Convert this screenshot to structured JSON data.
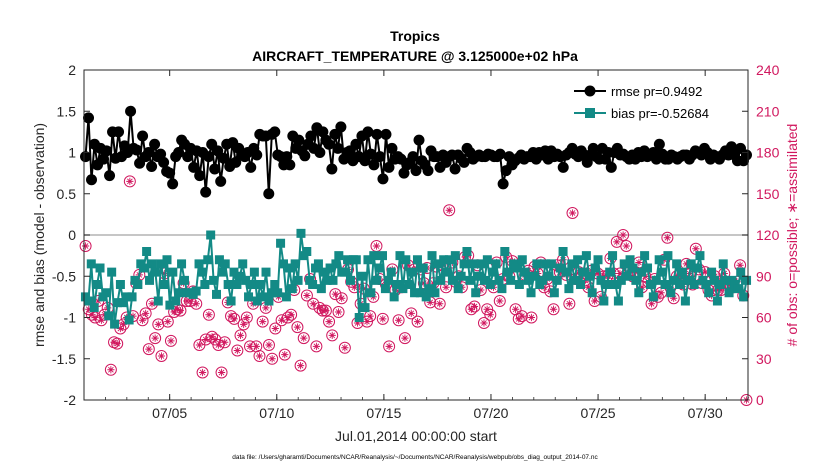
{
  "chart_data": {
    "type": "line",
    "title": "Tropics",
    "subtitle": "AIRCRAFT_TEMPERATURE @ 3.125000e+02 hPa",
    "xlabel": "Jul.01,2014 00:00:00 start",
    "ylabel_left": "rmse and bias (model - observation)",
    "ylabel_right": "# of obs: o=possible; ∗=assimilated",
    "footnote": "data file: /Users/gharamti/Documents/NCAR/Reanalysis/~/Documents/NCAR/Reanalysis/webpub/obs_diag_output_2014-07.nc",
    "x_range_days": [
      1,
      32
    ],
    "ylim_left": [
      -2,
      2
    ],
    "ylim_right": [
      0,
      240
    ],
    "yticks_left": [
      "-2",
      "-1.5",
      "-1",
      "-0.5",
      "0",
      "0.5",
      "1",
      "1.5",
      "2"
    ],
    "yticks_right": [
      "0",
      "30",
      "60",
      "90",
      "120",
      "150",
      "180",
      "210",
      "240"
    ],
    "xticks": [
      {
        "day": 5,
        "label": "07/05"
      },
      {
        "day": 10,
        "label": "07/10"
      },
      {
        "day": 15,
        "label": "07/15"
      },
      {
        "day": 20,
        "label": "07/20"
      },
      {
        "day": 25,
        "label": "07/25"
      },
      {
        "day": 30,
        "label": "07/30"
      }
    ],
    "legend": [
      {
        "name": "rmse pr=0.9492",
        "color": "#000000"
      },
      {
        "name": "bias pr=-0.52684",
        "color": "#138a86"
      }
    ],
    "colors": {
      "rmse": "#000000",
      "bias": "#138a86",
      "obs": "#d1185f",
      "zero": "#b3b3b3"
    },
    "series": [
      {
        "name": "rmse",
        "values": [
          0.95,
          1.42,
          0.67,
          1.1,
          0.85,
          1.05,
          0.92,
          1.02,
          0.72,
          1.25,
          0.93,
          1.25,
          0.95,
          1.08,
          1.0,
          1.5,
          1.05,
          1.03,
          0.87,
          1.2,
          0.95,
          1.0,
          0.83,
          1.1,
          0.95,
          0.98,
          0.88,
          0.77,
          0.75,
          0.62,
          0.95,
          1.0,
          1.15,
          1.1,
          0.95,
          1.05,
          0.82,
          1.02,
          0.72,
          1.0,
          0.52,
          0.95,
          1.1,
          0.8,
          1.02,
          0.65,
          0.93,
          1.1,
          0.83,
          1.12,
          0.88,
          1.05,
          0.98,
          0.95,
          1.0,
          0.82,
          1.05,
          0.97,
          1.22,
          1.2,
          1.2,
          0.5,
          1.22,
          1.25,
          0.97,
          0.95,
          0.85,
          0.95,
          0.85,
          1.2,
          1.05,
          1.15,
          1.02,
          0.96,
          1.1,
          1.2,
          1.05,
          1.3,
          1.0,
          1.25,
          1.15,
          1.1,
          0.8,
          1.22,
          1.05,
          1.31,
          0.92,
          1.0,
          1.02,
          0.9,
          1.1,
          0.95,
          1.2,
          0.9,
          1.25,
          0.98,
          0.85,
          1.22,
          0.95,
          0.68,
          1.22,
          0.82,
          1.05,
          0.92,
          0.95,
          0.92,
          0.75,
          0.85,
          0.88,
          0.95,
          0.78,
          1.15,
          0.9,
          0.85,
          0.78,
          1.02,
          0.95,
          0.95,
          0.82,
          0.97,
          0.88,
          0.95,
          0.97,
          0.8,
          0.97,
          0.93,
          0.88,
          1.05,
          1.0,
          0.92,
          0.95,
          0.97,
          0.95,
          0.95,
          0.98,
          0.97,
          0.95,
          0.95,
          0.98,
          0.62,
          0.78,
          0.95,
          0.85,
          0.9,
          0.93,
          0.97,
          0.92,
          0.95,
          0.95,
          1.0,
          0.92,
          1.0,
          0.97,
          1.02,
          0.92,
          1.02,
          0.95,
          0.98,
          0.95,
          0.82,
          0.97,
          1.0,
          1.05,
          0.98,
          0.95,
          1.02,
          0.97,
          0.88,
          0.97,
          1.05,
          0.95,
          0.92,
          1.05,
          0.92,
          1.0,
          0.82,
          1.0,
          1.05,
          0.97,
          0.98,
          0.95,
          0.92,
          0.97,
          0.92,
          1.0,
          0.95,
          1.02,
          0.95,
          0.97,
          1.0,
          0.92,
          1.1,
          0.98,
          0.92,
          0.92,
          0.97,
          0.95,
          0.92,
          0.95,
          0.97,
          0.97,
          0.92,
          0.97,
          1.02,
          1.0,
          0.97,
          1.05,
          1.0,
          0.92,
          0.97,
          0.95,
          0.92,
          0.97,
          1.02,
          0.97,
          1.07,
          0.97,
          0.9,
          1.05,
          0.9,
          0.97
        ]
      },
      {
        "name": "bias",
        "values": [
          -0.75,
          -0.8,
          -0.35,
          -0.88,
          -0.6,
          -0.4,
          -0.75,
          -0.7,
          -0.98,
          -0.45,
          -1.08,
          -0.82,
          -0.6,
          -0.82,
          -0.75,
          -1.03,
          -0.75,
          -0.55,
          -0.6,
          -0.35,
          -0.4,
          -0.2,
          -0.55,
          -0.35,
          -0.45,
          -0.8,
          -0.35,
          -0.6,
          -0.3,
          -0.85,
          -0.45,
          -0.8,
          -0.7,
          -0.35,
          -0.55,
          -0.7,
          -0.7,
          -0.72,
          -0.68,
          -0.35,
          -0.45,
          -0.6,
          -0.3,
          0.0,
          -0.55,
          -0.72,
          -0.3,
          -0.45,
          -0.35,
          -0.6,
          -0.8,
          -0.45,
          -0.6,
          -0.5,
          -0.35,
          -0.55,
          -0.75,
          -0.6,
          -0.45,
          -0.8,
          -0.6,
          -0.75,
          -0.45,
          -0.8,
          -0.7,
          -0.6,
          -0.7,
          -0.1,
          -0.35,
          -0.75,
          -0.4,
          -0.65,
          -0.35,
          -0.55,
          0.02,
          -0.25,
          -0.2,
          -0.55,
          -0.6,
          -0.4,
          -0.35,
          -0.65,
          -0.45,
          -0.55,
          -0.4,
          -0.55,
          -0.35,
          -0.25,
          -0.45,
          -0.45,
          -0.3,
          -0.55,
          -0.3,
          -0.3,
          -1.0,
          -0.5,
          -0.88,
          -0.3,
          -0.7,
          -0.25,
          -0.55,
          -0.4,
          -0.25,
          -0.65,
          -0.55,
          -0.45,
          -0.75,
          -0.6,
          -0.25,
          -0.65,
          -0.3,
          -0.6,
          -0.45,
          -0.7,
          -0.3,
          -0.7,
          -0.4,
          -0.75,
          -0.65,
          -0.25,
          -0.7,
          -0.35,
          -0.55,
          -0.3,
          -0.45,
          -0.3,
          -0.55,
          -0.25,
          -0.65,
          -0.5,
          -0.35,
          -0.2,
          -0.55,
          -0.35,
          -0.7,
          -0.5,
          -0.35,
          -0.55,
          -0.3,
          -0.6,
          -0.45,
          -0.35,
          -0.55,
          -0.65,
          -0.2,
          -0.45,
          -0.55,
          -0.35,
          -0.4,
          -0.6,
          -0.3,
          -0.45,
          -0.55,
          -0.7,
          -0.5,
          -0.35,
          -0.6,
          -0.55,
          -0.35,
          -0.5,
          -0.35,
          -0.7,
          -0.55,
          -0.4,
          -0.2,
          -0.45,
          -0.65,
          -0.35,
          -0.55,
          -0.3,
          -0.6,
          -0.45,
          -0.25,
          -0.5,
          -0.7,
          -0.4,
          -0.3,
          -0.55,
          -0.8,
          -0.6,
          -0.45,
          -0.25,
          -0.6,
          -0.8,
          -0.55,
          -0.35,
          -0.5,
          -0.3,
          -0.4,
          -0.55,
          -0.7,
          -0.45,
          -0.25,
          -0.4,
          -0.6,
          -0.75,
          -0.55,
          -0.3,
          -0.45,
          -0.6,
          -0.25,
          -0.7,
          -0.55,
          -0.35,
          -0.6,
          -0.45,
          -0.8,
          -0.55,
          -0.35,
          -0.6,
          -0.4,
          -0.25,
          -0.55,
          -0.6,
          -0.7,
          -0.45,
          -0.55,
          -0.8,
          -0.6,
          -0.35,
          -0.55,
          -0.7,
          -0.55,
          -0.6,
          -0.65,
          -0.45,
          -0.75,
          -0.55
        ]
      },
      {
        "name": "observations possible",
        "axis": "right",
        "values": [
          112,
          66,
          62,
          60,
          72,
          58,
          62,
          67,
          22,
          42,
          41,
          52,
          55,
          60,
          159,
          61,
          85,
          91,
          58,
          63,
          37,
          70,
          45,
          55,
          32,
          92,
          57,
          43,
          64,
          66,
          65,
          85,
          72,
          72,
          79,
          70,
          40,
          20,
          44,
          62,
          46,
          44,
          40,
          20,
          42,
          71,
          61,
          59,
          36,
          47,
          55,
          60,
          39,
          70,
          39,
          32,
          57,
          67,
          40,
          30,
          52,
          75,
          58,
          33,
          60,
          62,
          80,
          53,
          25,
          45,
          76,
          88,
          70,
          39,
          67,
          65,
          65,
          57,
          47,
          77,
          64,
          74,
          38,
          95,
          86,
          82,
          56,
          70,
          81,
          57,
          61,
          75,
          112,
          88,
          59,
          84,
          39,
          95,
          80,
          58,
          82,
          45,
          98,
          63,
          95,
          57,
          95,
          85,
          96,
          71,
          85,
          97,
          70,
          98,
          82,
          138,
          100,
          86,
          90,
          82,
          104,
          105,
          66,
          68,
          98,
          80,
          56,
          66,
          62,
          82,
          100,
          72,
          88,
          104,
          90,
          101,
          66,
          59,
          61,
          91,
          94,
          60,
          97,
          92,
          100,
          82,
          88,
          79,
          66,
          98,
          93,
          102,
          91,
          70,
          136,
          88,
          93,
          90,
          87,
          82,
          94,
          72,
          92,
          75,
          90,
          90,
          103,
          92,
          115,
          92,
          120,
          112,
          96,
          90,
          93,
          100,
          82,
          90,
          86,
          70,
          88,
          75,
          78,
          102,
          118,
          82,
          74,
          90,
          88,
          84,
          99,
          92,
          84,
          110,
          95,
          85,
          93,
          80,
          76,
          90,
          80,
          80,
          92,
          85,
          82,
          82,
          86,
          98,
          76,
          0
        ]
      }
    ]
  }
}
